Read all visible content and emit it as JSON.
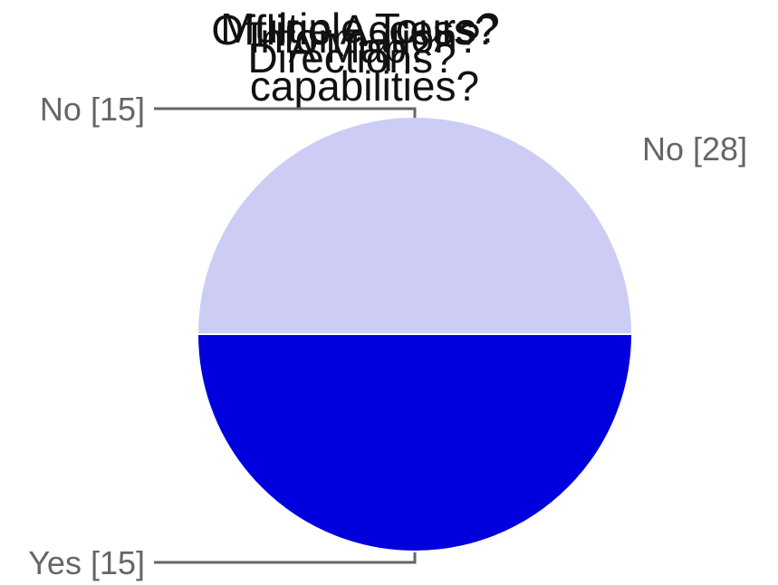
{
  "titles": [
    "Multiple Tours?",
    "Offline Access?",
    "Information?",
    "A Map?",
    "Directions?",
    "capabilities?"
  ],
  "offscreen_label": "No [28]",
  "chart_data": {
    "type": "pie",
    "categories": [
      "No [15]",
      "Yes [15]"
    ],
    "values": [
      15,
      15
    ],
    "colors": [
      "#ccccf5",
      "#0000dd"
    ],
    "leader_line_color": "#666666",
    "label_color": "#666666",
    "label_placement": "left"
  }
}
